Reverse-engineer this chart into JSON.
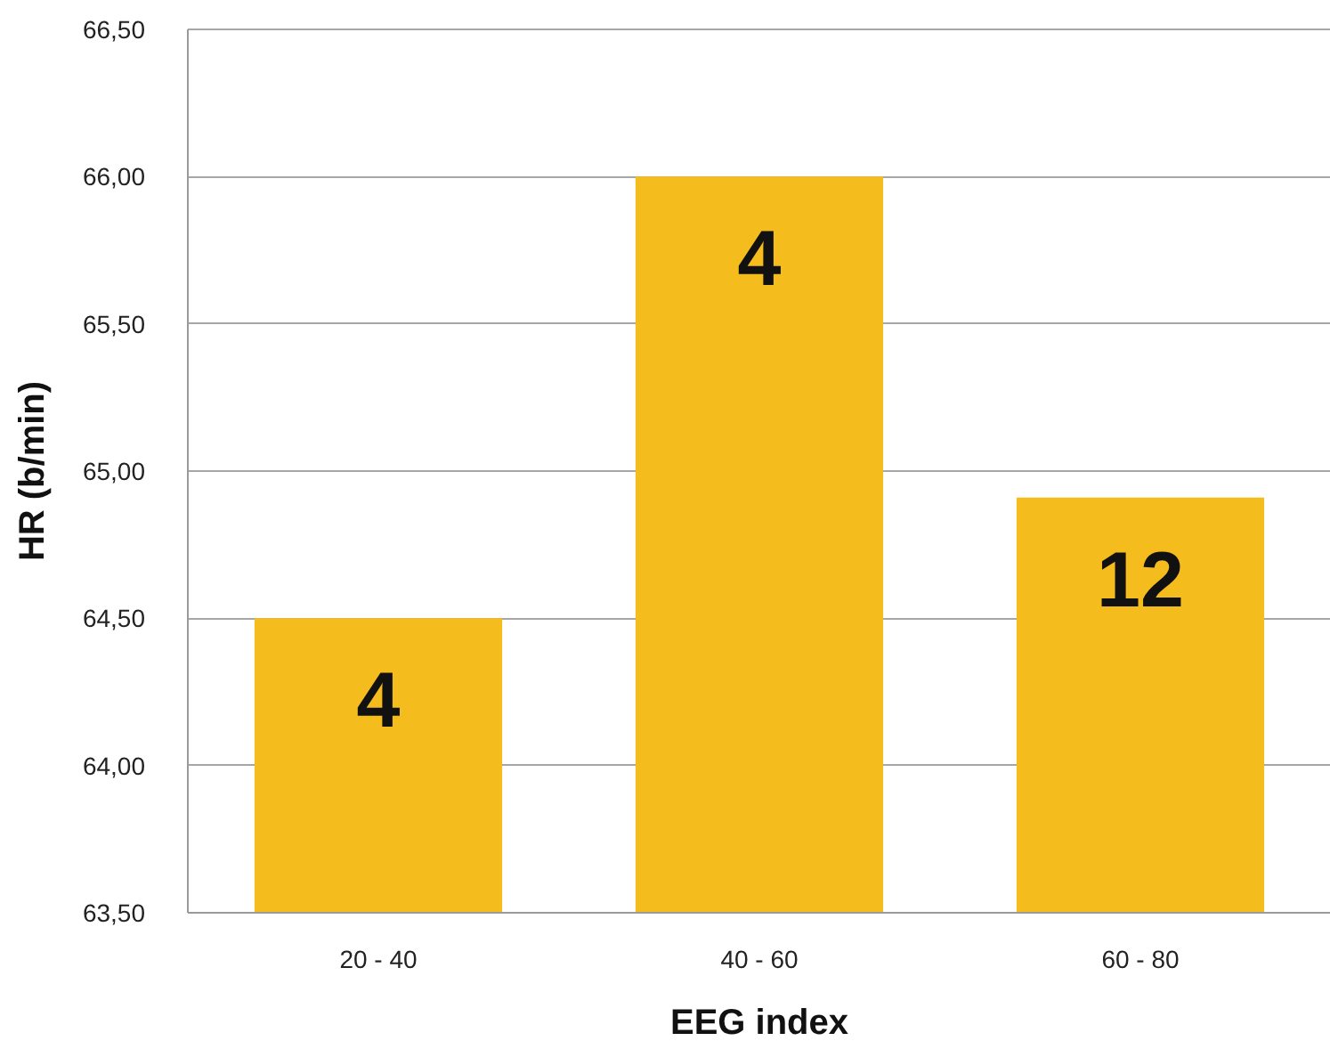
{
  "chart_data": {
    "type": "bar",
    "xlabel": "EEG index",
    "ylabel": "HR (b/min)",
    "categories": [
      "20 - 40",
      "40 - 60",
      "60 - 80"
    ],
    "values": [
      64.5,
      66.0,
      64.91
    ],
    "color": "#f4bc1c",
    "annotations": [
      {
        "text": "4",
        "x": "20 - 40",
        "y": 64.5
      },
      {
        "text": "4",
        "x": "40 - 60",
        "y": 66.0
      },
      {
        "text": "12",
        "x": "60 - 80",
        "y": 64.91
      }
    ],
    "ylim": [
      63.5,
      66.5
    ],
    "yticks": [
      {
        "value": 63.5,
        "label": "63,50"
      },
      {
        "value": 64.0,
        "label": "64,00"
      },
      {
        "value": 64.5,
        "label": "64,50"
      },
      {
        "value": 65.0,
        "label": "65,00"
      },
      {
        "value": 65.5,
        "label": "65,50"
      },
      {
        "value": 66.0,
        "label": "66,00"
      },
      {
        "value": 66.5,
        "label": "66,50"
      }
    ],
    "grid": "y"
  }
}
